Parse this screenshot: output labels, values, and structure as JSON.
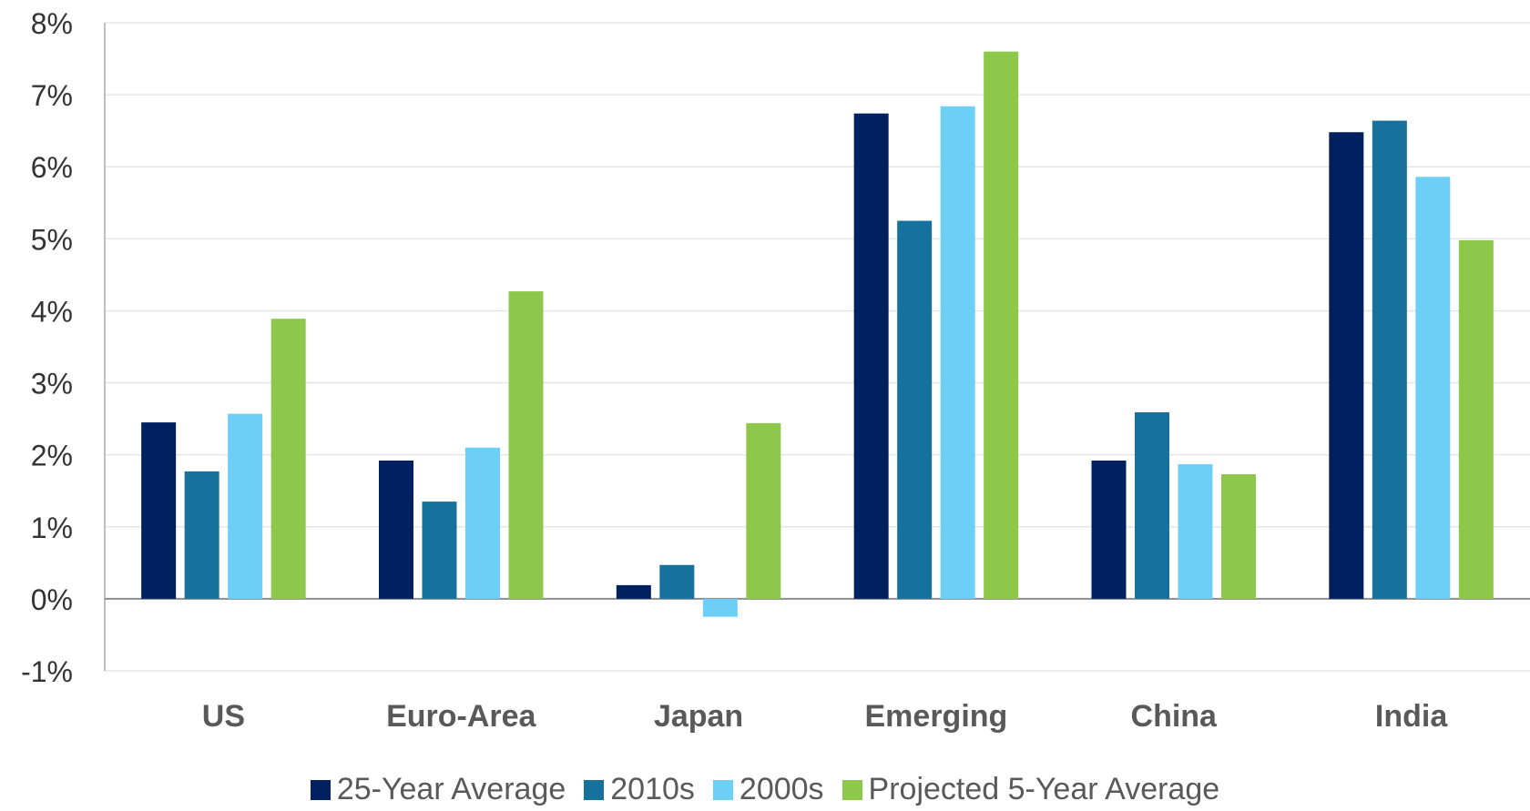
{
  "chart_data": {
    "type": "bar",
    "title": "",
    "xlabel": "",
    "ylabel": "",
    "categories": [
      "US",
      "Euro-Area",
      "Japan",
      "Emerging",
      "China",
      "India"
    ],
    "series": [
      {
        "name": "25-Year Average",
        "color": "#002060",
        "values": [
          2.45,
          1.92,
          0.19,
          6.74,
          1.92,
          6.48
        ]
      },
      {
        "name": "2010s",
        "color": "#17719d",
        "values": [
          1.77,
          1.35,
          0.47,
          5.25,
          2.59,
          6.64
        ]
      },
      {
        "name": "2000s",
        "color": "#6dcff6",
        "values": [
          2.57,
          2.1,
          -0.25,
          6.84,
          1.87,
          5.86
        ]
      },
      {
        "name": "Projected 5-Year Average",
        "color": "#8dc84b",
        "values": [
          3.89,
          4.27,
          2.44,
          7.6,
          1.73,
          4.98
        ]
      }
    ],
    "ylim": [
      -1,
      8
    ],
    "yticks": [
      "8%",
      "7%",
      "6%",
      "5%",
      "4%",
      "3%",
      "2%",
      "1%",
      "0%",
      "-1%"
    ],
    "grid": true,
    "legend_position": "bottom"
  }
}
